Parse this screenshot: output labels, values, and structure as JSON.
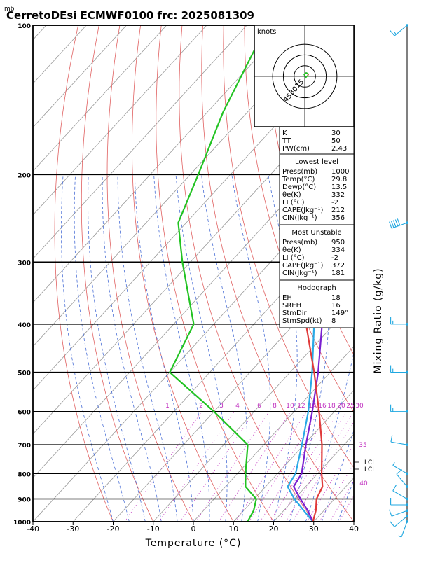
{
  "header": {
    "unit_label": "mb",
    "title": "CerretoDEsi ECMWF0100  frc: 2025081309"
  },
  "colors": {
    "isotherm": "#999999",
    "dry_adiabat": "#e06060",
    "moist_adiabat": "#4a6fd6",
    "mixing_ratio": "#c030c0",
    "temperature": "#e03a3a",
    "dewpoint": "#22c322",
    "parcel": "#7a1fd1",
    "virtual": "#29a9e6",
    "wind": "#1fa7e0",
    "hodo_trace": "#22c322",
    "hodo_trace2": "#e03a3a"
  },
  "chart_data": {
    "type": "skew-t",
    "xlabel": "Temperature (°C)",
    "ylabel": "Mixing Ratio (g/kg)",
    "xlim": [
      -40,
      40
    ],
    "ylim_mb": [
      1000,
      100
    ],
    "x_ticks": [
      -40,
      -30,
      -20,
      -10,
      0,
      10,
      20,
      30,
      40
    ],
    "pressure_ticks": [
      100,
      200,
      300,
      400,
      500,
      600,
      700,
      800,
      900,
      1000
    ],
    "mixing_ratio_labels": [
      "1",
      "2",
      "3",
      "4",
      "6",
      "8",
      "10",
      "12",
      "14",
      "16",
      "18",
      "20",
      "25",
      "30",
      "35",
      "40"
    ],
    "lcl_labels": [
      "LCL",
      "LCL"
    ],
    "temperature": [
      {
        "p": 1000,
        "t": 29.8
      },
      {
        "p": 950,
        "t": 28
      },
      {
        "p": 900,
        "t": 25.5
      },
      {
        "p": 850,
        "t": 24.2
      },
      {
        "p": 800,
        "t": 21
      },
      {
        "p": 700,
        "t": 14.5
      },
      {
        "p": 600,
        "t": 6.2
      },
      {
        "p": 500,
        "t": -4
      },
      {
        "p": 400,
        "t": -17
      },
      {
        "p": 300,
        "t": -30
      },
      {
        "p": 250,
        "t": -39
      },
      {
        "p": 200,
        "t": -49
      },
      {
        "p": 150,
        "t": -59
      },
      {
        "p": 100,
        "t": -73
      }
    ],
    "dewpoint": [
      {
        "p": 1000,
        "t": 13.5
      },
      {
        "p": 950,
        "t": 12.5
      },
      {
        "p": 900,
        "t": 10.5
      },
      {
        "p": 850,
        "t": 5
      },
      {
        "p": 800,
        "t": 2
      },
      {
        "p": 700,
        "t": -4
      },
      {
        "p": 600,
        "t": -20
      },
      {
        "p": 500,
        "t": -40
      },
      {
        "p": 400,
        "t": -45
      },
      {
        "p": 300,
        "t": -62
      },
      {
        "p": 250,
        "t": -72
      },
      {
        "p": 200,
        "t": -78
      },
      {
        "p": 150,
        "t": -86
      },
      {
        "p": 100,
        "t": -95
      }
    ],
    "parcel": [
      {
        "p": 1000,
        "t": 29.8
      },
      {
        "p": 950,
        "t": 26
      },
      {
        "p": 900,
        "t": 21.5
      },
      {
        "p": 850,
        "t": 17
      },
      {
        "p": 800,
        "t": 16
      },
      {
        "p": 700,
        "t": 10.5
      },
      {
        "p": 600,
        "t": 4.5
      },
      {
        "p": 500,
        "t": -3
      },
      {
        "p": 400,
        "t": -13
      },
      {
        "p": 300,
        "t": -28
      },
      {
        "p": 200,
        "t": -50
      },
      {
        "p": 130,
        "t": -73
      }
    ],
    "virtual": [
      {
        "p": 1000,
        "t": 29.8
      },
      {
        "p": 950,
        "t": 25
      },
      {
        "p": 900,
        "t": 20
      },
      {
        "p": 850,
        "t": 15.5
      },
      {
        "p": 800,
        "t": 14.5
      },
      {
        "p": 700,
        "t": 9.5
      },
      {
        "p": 600,
        "t": 3.5
      },
      {
        "p": 500,
        "t": -4.5
      },
      {
        "p": 400,
        "t": -15
      },
      {
        "p": 300,
        "t": -31
      },
      {
        "p": 200,
        "t": -53
      },
      {
        "p": 130,
        "t": -75
      }
    ],
    "winds": [
      {
        "p": 1000,
        "speed_kt": 5,
        "dir": 200
      },
      {
        "p": 975,
        "speed_kt": 10,
        "dir": 230
      },
      {
        "p": 950,
        "speed_kt": 10,
        "dir": 250
      },
      {
        "p": 925,
        "speed_kt": 10,
        "dir": 270
      },
      {
        "p": 900,
        "speed_kt": 10,
        "dir": 300
      },
      {
        "p": 850,
        "speed_kt": 10,
        "dir": 320
      },
      {
        "p": 800,
        "speed_kt": 5,
        "dir": 300
      },
      {
        "p": 700,
        "speed_kt": 10,
        "dir": 280
      },
      {
        "p": 600,
        "speed_kt": 15,
        "dir": 270
      },
      {
        "p": 500,
        "speed_kt": 15,
        "dir": 270
      },
      {
        "p": 400,
        "speed_kt": 15,
        "dir": 270
      },
      {
        "p": 250,
        "speed_kt": 50,
        "dir": 250
      },
      {
        "p": 100,
        "speed_kt": 15,
        "dir": 230
      }
    ],
    "hodograph": {
      "unit_label": "knots",
      "ring_labels": [
        "15",
        "30",
        "45"
      ],
      "ring_values_kt": [
        15,
        30,
        45
      ],
      "trace_kt": [
        [
          0,
          -3
        ],
        [
          2,
          -1
        ],
        [
          4,
          1
        ],
        [
          5,
          3
        ],
        [
          4,
          4
        ],
        [
          2,
          5
        ],
        [
          1,
          4
        ],
        [
          -1,
          3
        ],
        [
          0,
          1
        ]
      ]
    }
  },
  "indices": {
    "top": [
      {
        "label": "K",
        "value": "30"
      },
      {
        "label": "TT",
        "value": "50"
      },
      {
        "label": "PW(cm)",
        "value": "2.43"
      }
    ],
    "sections": [
      {
        "heading": "Lowest level",
        "rows": [
          {
            "label": "Press(mb)",
            "value": "1000"
          },
          {
            "label": "Temp(°C)",
            "value": "29.8"
          },
          {
            "label": "Dewp(°C)",
            "value": "13.5"
          },
          {
            "label": "θe(K)",
            "value": "332"
          },
          {
            "label": "LI (°C)",
            "value": "-2"
          },
          {
            "label": "CAPE(Jkg⁻¹)",
            "value": "212"
          },
          {
            "label": "CIN(Jkg⁻¹)",
            "value": "356"
          }
        ]
      },
      {
        "heading": "Most Unstable",
        "rows": [
          {
            "label": "Press(mb)",
            "value": "950"
          },
          {
            "label": "θe(K)",
            "value": "334"
          },
          {
            "label": "LI (°C)",
            "value": "-2"
          },
          {
            "label": "CAPE(Jkg⁻¹)",
            "value": "372"
          },
          {
            "label": "CIN(Jkg⁻¹)",
            "value": "181"
          }
        ]
      },
      {
        "heading": "Hodograph",
        "rows": [
          {
            "label": "EH",
            "value": "18"
          },
          {
            "label": "SREH",
            "value": "16"
          },
          {
            "label": "StmDir",
            "value": "149°"
          },
          {
            "label": "StmSpd(kt)",
            "value": "8"
          }
        ]
      }
    ]
  }
}
